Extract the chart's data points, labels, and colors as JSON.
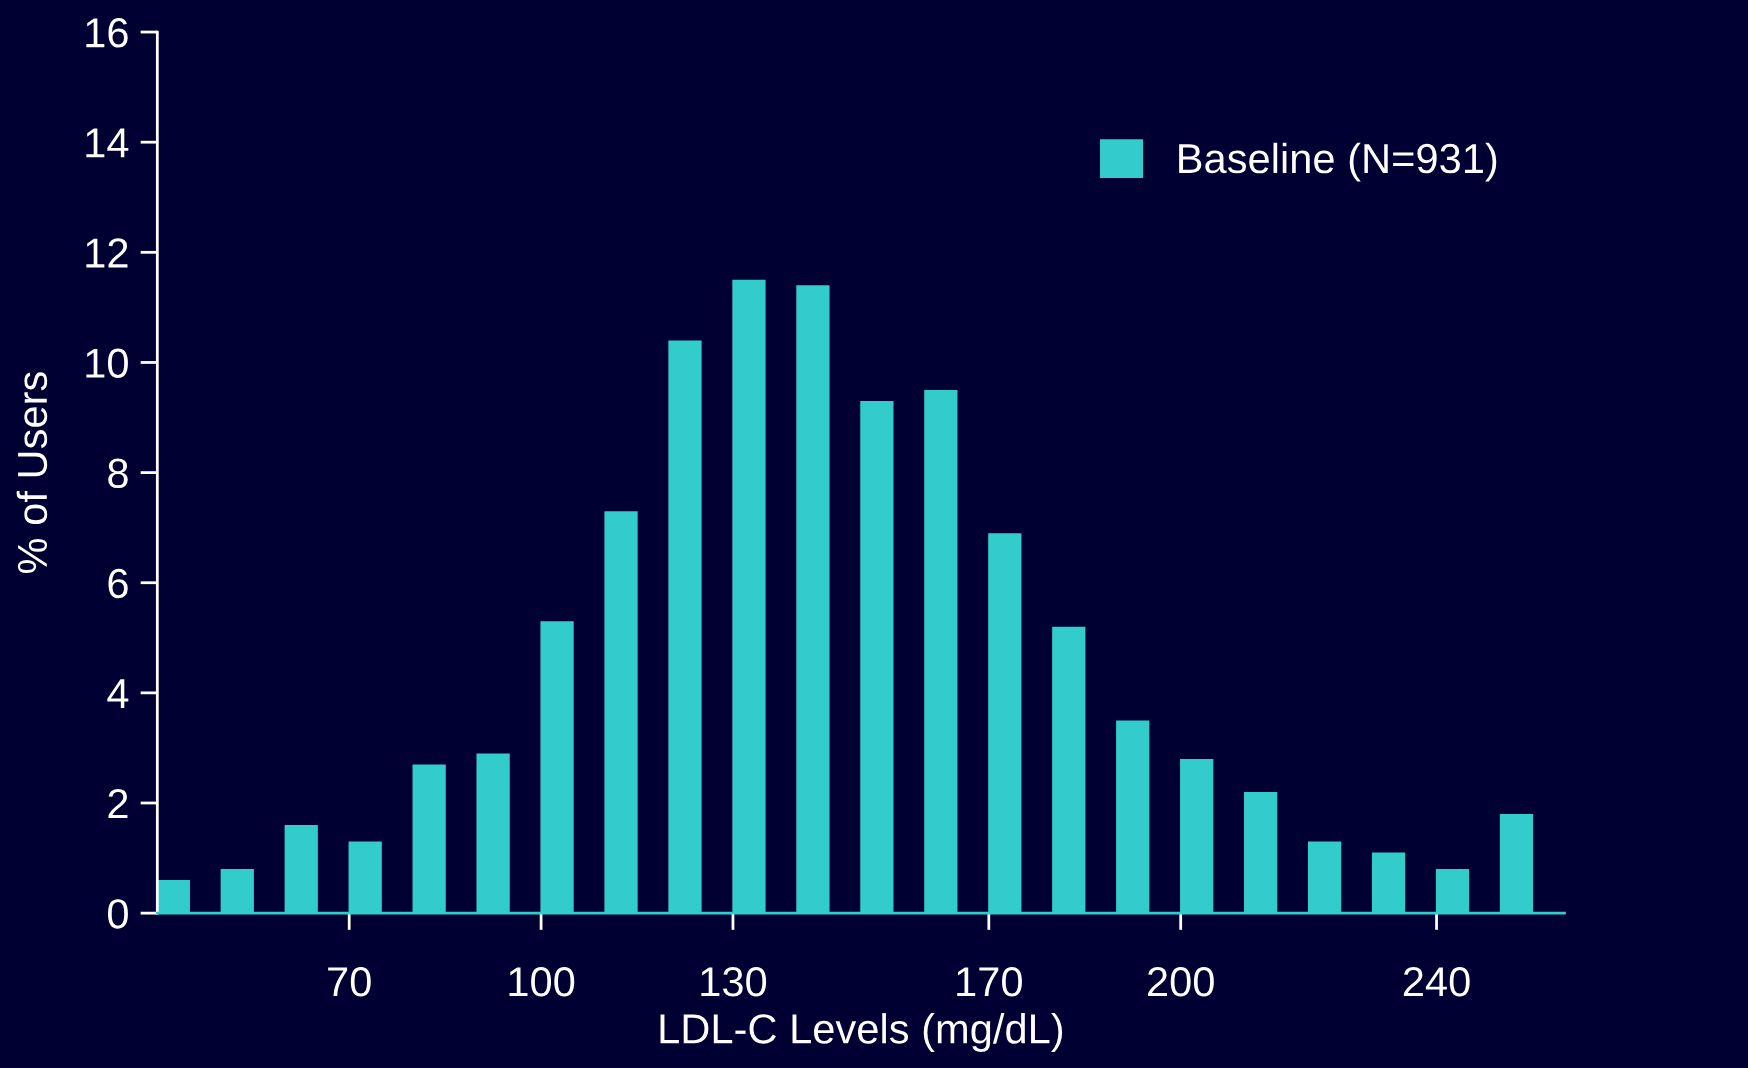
{
  "chart_data": {
    "type": "bar",
    "xlabel": "LDL-C Levels (mg/dL)",
    "ylabel": "% of Users",
    "x": [
      42.5,
      52.5,
      62.5,
      72.5,
      82.5,
      92.5,
      102.5,
      112.5,
      122.5,
      132.5,
      142.5,
      152.5,
      162.5,
      172.5,
      182.5,
      192.5,
      202.5,
      212.5,
      222.5,
      232.5,
      242.5,
      252.5
    ],
    "series": [
      {
        "name": "Baseline (N=931)",
        "color": "#33cccc",
        "values": [
          0.6,
          0.8,
          1.6,
          1.3,
          2.7,
          2.9,
          5.3,
          7.3,
          10.4,
          11.5,
          11.4,
          9.3,
          9.5,
          6.9,
          5.2,
          3.5,
          2.8,
          2.2,
          1.3,
          1.1,
          0.8,
          1.8
        ]
      }
    ],
    "xlim": [
      40,
      260
    ],
    "xticks": [
      70,
      100,
      130,
      170,
      200,
      240
    ],
    "ylim": [
      0,
      16
    ],
    "yticks": [
      0,
      2,
      4,
      6,
      8,
      10,
      12,
      14,
      16
    ],
    "grid": false,
    "legend": "top right"
  }
}
